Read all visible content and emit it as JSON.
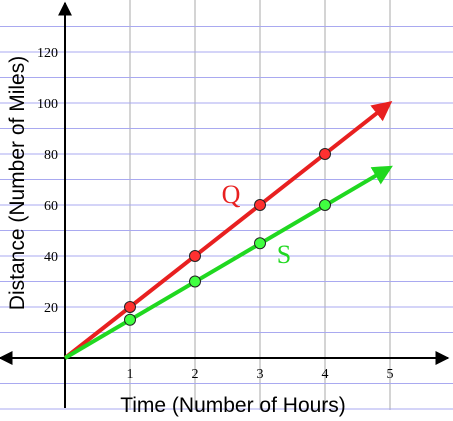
{
  "chart_data": {
    "type": "line",
    "xlabel": "Time (Number of Hours)",
    "ylabel": "Distance (Number of Miles)",
    "x_ticks": [
      1,
      2,
      3,
      4,
      5
    ],
    "y_ticks": [
      20,
      40,
      60,
      80,
      100,
      120
    ],
    "xlim": [
      0,
      6.0
    ],
    "ylim": [
      -20,
      140
    ],
    "grid": true,
    "series": [
      {
        "name": "Q",
        "color": "#e82020",
        "marker_color": "#ff3030",
        "points": [
          [
            1,
            20
          ],
          [
            2,
            40
          ],
          [
            3,
            60
          ],
          [
            4,
            80
          ]
        ],
        "line_end": [
          5,
          100
        ]
      },
      {
        "name": "S",
        "color": "#20d820",
        "marker_color": "#40ff40",
        "points": [
          [
            1,
            15
          ],
          [
            2,
            30
          ],
          [
            3,
            45
          ],
          [
            4,
            60
          ]
        ],
        "line_end": [
          5,
          75
        ]
      }
    ]
  }
}
